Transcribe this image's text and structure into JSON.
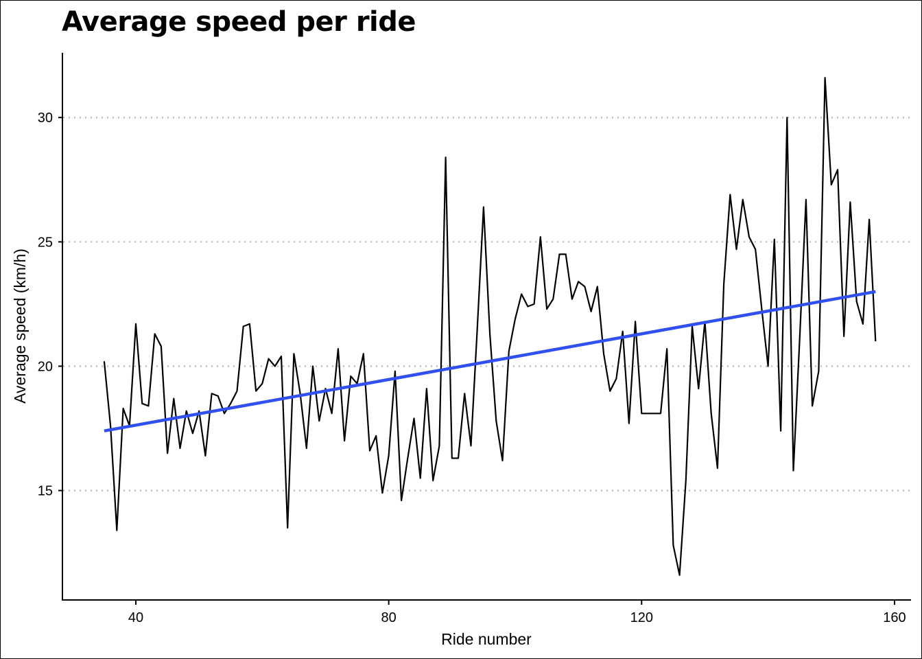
{
  "chart_data": {
    "type": "line",
    "title": "Average speed per ride",
    "xlabel": "Ride number",
    "ylabel": "Average speed (km/h)",
    "xlim": [
      28.5,
      162.5
    ],
    "ylim": [
      10.6,
      32.6
    ],
    "xticks": [
      40,
      80,
      120,
      160
    ],
    "yticks": [
      15,
      20,
      25,
      30
    ],
    "grid": "horizontal-dotted",
    "legend": "none",
    "colors": {
      "line": "#000000",
      "trend": "#3150f0",
      "grid": "#b3b3b3"
    },
    "series": [
      {
        "x": [
          35,
          36,
          37,
          38,
          39,
          40,
          41,
          42,
          43,
          44,
          45,
          46,
          47,
          48,
          49,
          50,
          51,
          52,
          53,
          54,
          55,
          56,
          57,
          58,
          59,
          60,
          61,
          62,
          63,
          64,
          65,
          66,
          67,
          68,
          69,
          70,
          71,
          72,
          73,
          74,
          75,
          76,
          77,
          78,
          79,
          80,
          81,
          82,
          83,
          84,
          85,
          86,
          87,
          88,
          89,
          90,
          91,
          92,
          93,
          94,
          95,
          96,
          97,
          98,
          99,
          100,
          101,
          102,
          103,
          104,
          105,
          106,
          107,
          108,
          109,
          110,
          111,
          112,
          113,
          114,
          115,
          116,
          117,
          118,
          119,
          120,
          121,
          122,
          123,
          124,
          125,
          126,
          127,
          128,
          129,
          130,
          131,
          132,
          133,
          134,
          135,
          136,
          137,
          138,
          139,
          140,
          141,
          142,
          143,
          144,
          145,
          146,
          147,
          148,
          149,
          150,
          151,
          152,
          153,
          154,
          155,
          156,
          157
        ],
        "values": [
          20.2,
          17.6,
          13.4,
          18.3,
          17.6,
          21.7,
          18.5,
          18.4,
          21.3,
          20.8,
          16.5,
          18.7,
          16.7,
          18.2,
          17.3,
          18.2,
          16.4,
          18.9,
          18.8,
          18.1,
          18.5,
          19.0,
          21.6,
          21.7,
          19.0,
          19.3,
          20.3,
          20.0,
          20.4,
          13.5,
          20.5,
          18.9,
          16.7,
          20.0,
          17.8,
          19.1,
          18.1,
          20.7,
          17.0,
          19.6,
          19.3,
          20.5,
          16.6,
          17.2,
          14.9,
          16.4,
          19.8,
          14.6,
          16.3,
          17.9,
          15.5,
          19.1,
          15.4,
          16.8,
          28.4,
          16.3,
          16.3,
          18.9,
          16.8,
          21.5,
          26.4,
          21.3,
          17.8,
          16.2,
          20.6,
          21.9,
          22.9,
          22.4,
          22.5,
          25.2,
          22.3,
          22.7,
          24.5,
          24.5,
          22.7,
          23.4,
          23.2,
          22.2,
          23.2,
          20.5,
          19.0,
          19.5,
          21.4,
          17.7,
          21.8,
          18.1,
          18.1,
          18.1,
          18.1,
          20.7,
          12.8,
          11.6,
          15.4,
          21.6,
          19.1,
          21.8,
          18.1,
          15.9,
          23.3,
          26.9,
          24.7,
          26.7,
          25.2,
          24.7,
          22.3,
          20.0,
          25.1,
          17.4,
          30.0,
          15.8,
          21.1,
          26.7,
          18.4,
          19.8,
          31.6,
          27.3,
          27.9,
          21.2,
          26.6,
          22.6,
          21.7,
          25.9,
          21.0
        ]
      },
      {
        "x": [
          35,
          157
        ],
        "values": [
          17.4,
          23.0
        ]
      }
    ]
  }
}
